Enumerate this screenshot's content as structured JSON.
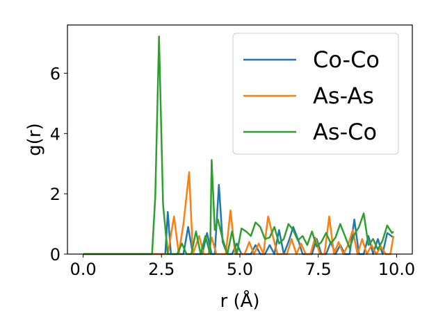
{
  "chart_data": {
    "type": "line",
    "title": "",
    "xlabel": "r (Å)",
    "ylabel": "g(r)",
    "xlim": [
      -0.5,
      10.5
    ],
    "ylim": [
      0,
      7.6
    ],
    "xticks": [
      0.0,
      2.5,
      5.0,
      7.5,
      10.0
    ],
    "xtick_labels": [
      "0.0",
      "2.5",
      "5.0",
      "7.5",
      "10.0"
    ],
    "yticks": [
      0,
      2,
      4,
      6
    ],
    "ytick_labels": [
      "0",
      "2",
      "4",
      "6"
    ],
    "grid": false,
    "legend_position": "top-right",
    "series": [
      {
        "name": "Co-Co",
        "color": "#1f77b4",
        "x": [
          0.0,
          1.0,
          2.0,
          2.2,
          2.5,
          2.62,
          2.7,
          2.8,
          2.9,
          3.0,
          3.2,
          3.35,
          3.5,
          3.6,
          3.8,
          3.95,
          4.1,
          4.2,
          4.33,
          4.45,
          4.6,
          4.75,
          4.9,
          5.05,
          5.2,
          5.35,
          5.5,
          5.65,
          5.8,
          5.95,
          6.1,
          6.25,
          6.4,
          6.55,
          6.7,
          6.85,
          7.0,
          7.15,
          7.3,
          7.45,
          7.6,
          7.75,
          7.9,
          8.05,
          8.2,
          8.35,
          8.5,
          8.65,
          8.8,
          8.95,
          9.1,
          9.25,
          9.4,
          9.55,
          9.7,
          9.9
        ],
        "values": [
          0,
          0,
          0,
          0,
          0,
          0,
          1.4,
          0,
          0,
          0,
          0,
          0.9,
          0,
          0,
          0,
          0.7,
          0,
          0,
          2.3,
          0.4,
          0,
          0,
          0.35,
          0,
          0,
          0,
          0.3,
          0,
          0,
          0.3,
          0,
          0.8,
          0,
          0.4,
          0.9,
          0.5,
          0,
          0,
          0,
          0.5,
          0,
          0,
          0.4,
          0,
          0.3,
          0,
          0,
          1.15,
          0,
          0,
          0.6,
          0,
          0.5,
          0,
          0.7,
          0.55
        ]
      },
      {
        "name": "As-As",
        "color": "#ff7f0e",
        "x": [
          0.0,
          1.0,
          2.0,
          2.2,
          2.5,
          2.7,
          2.9,
          3.05,
          3.2,
          3.38,
          3.5,
          3.7,
          3.85,
          4.0,
          4.1,
          4.25,
          4.4,
          4.55,
          4.7,
          4.85,
          5.0,
          5.15,
          5.3,
          5.45,
          5.6,
          5.75,
          5.9,
          6.05,
          6.2,
          6.35,
          6.5,
          6.65,
          6.8,
          6.95,
          7.1,
          7.25,
          7.4,
          7.55,
          7.7,
          7.85,
          8.0,
          8.15,
          8.3,
          8.45,
          8.6,
          8.75,
          8.9,
          9.05,
          9.2,
          9.35,
          9.5,
          9.65,
          9.8,
          9.9
        ],
        "values": [
          0,
          0,
          0,
          0,
          0,
          0,
          1.25,
          0,
          1.0,
          2.72,
          0,
          0.6,
          0,
          0,
          0.55,
          0,
          0,
          0,
          1.45,
          0,
          0,
          0,
          0.4,
          0,
          0.35,
          0,
          1.25,
          0.6,
          0,
          0,
          0,
          0.5,
          0,
          0.35,
          0,
          0,
          0.55,
          0,
          0,
          1.25,
          0,
          0.4,
          0,
          0.3,
          0.8,
          0,
          0.5,
          0,
          0.3,
          0,
          0.25,
          0,
          0,
          0.6
        ]
      },
      {
        "name": "As-Co",
        "color": "#2ca02c",
        "x": [
          0.0,
          1.0,
          2.0,
          2.2,
          2.3,
          2.42,
          2.55,
          2.7,
          2.85,
          3.0,
          3.15,
          3.3,
          3.45,
          3.6,
          3.75,
          3.9,
          4.05,
          4.1,
          4.2,
          4.3,
          4.45,
          4.6,
          4.75,
          4.9,
          5.05,
          5.2,
          5.35,
          5.5,
          5.65,
          5.8,
          5.95,
          6.1,
          6.25,
          6.4,
          6.55,
          6.7,
          6.85,
          7.0,
          7.15,
          7.3,
          7.45,
          7.6,
          7.75,
          7.9,
          8.05,
          8.2,
          8.35,
          8.5,
          8.65,
          8.8,
          8.95,
          9.1,
          9.25,
          9.4,
          9.55,
          9.7,
          9.85,
          9.9
        ],
        "values": [
          0,
          0,
          0,
          0,
          1.9,
          7.22,
          1.65,
          0,
          0,
          0,
          0.35,
          0,
          0,
          0.75,
          0,
          0.6,
          0,
          3.12,
          0.8,
          1.15,
          0.5,
          0,
          0.75,
          0,
          0.85,
          0.75,
          0.6,
          1.05,
          0.9,
          0.5,
          0.55,
          0.9,
          0.35,
          0.5,
          1.0,
          0.8,
          0.45,
          0.6,
          0.3,
          0.75,
          0.25,
          0.4,
          0.7,
          0.35,
          0.55,
          1.0,
          0.6,
          0.2,
          0.65,
          0.9,
          1.35,
          0.3,
          0.5,
          0.15,
          0.45,
          0.95,
          0.7,
          0.75
        ]
      }
    ]
  }
}
